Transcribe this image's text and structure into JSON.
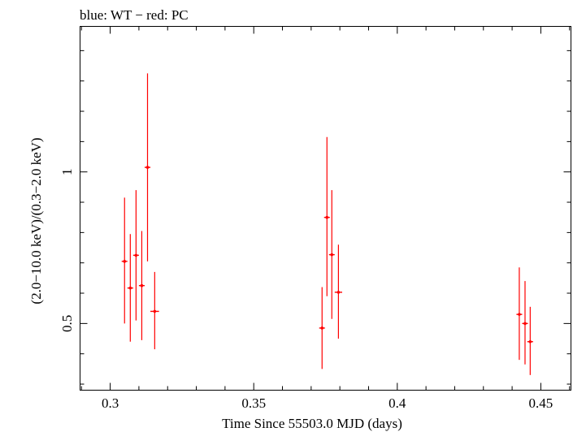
{
  "chart_data": {
    "type": "scatter",
    "title": "blue: WT − red: PC",
    "xlabel": "Time Since 55503.0 MJD (days)",
    "ylabel": "(2.0−10.0 keV)/(0.3−2.0 keV)",
    "xlim": [
      0.2895,
      0.4605
    ],
    "ylim": [
      0.28,
      1.48
    ],
    "xticks": [
      {
        "value": 0.3,
        "label": "0.3"
      },
      {
        "value": 0.35,
        "label": "0.35"
      },
      {
        "value": 0.4,
        "label": "0.4"
      },
      {
        "value": 0.45,
        "label": "0.45"
      }
    ],
    "yticks": [
      {
        "value": 0.5,
        "label": "0.5"
      },
      {
        "value": 1.0,
        "label": "1"
      }
    ],
    "series": [
      {
        "name": "PC",
        "color": "#ff0000",
        "points": [
          {
            "x": 0.305,
            "xerr": 0.001,
            "y": 0.705,
            "ylo": 0.5,
            "yhi": 0.915
          },
          {
            "x": 0.307,
            "xerr": 0.001,
            "y": 0.617,
            "ylo": 0.44,
            "yhi": 0.795
          },
          {
            "x": 0.309,
            "xerr": 0.001,
            "y": 0.725,
            "ylo": 0.51,
            "yhi": 0.94
          },
          {
            "x": 0.311,
            "xerr": 0.001,
            "y": 0.625,
            "ylo": 0.445,
            "yhi": 0.805
          },
          {
            "x": 0.313,
            "xerr": 0.001,
            "y": 1.015,
            "ylo": 0.705,
            "yhi": 1.325
          },
          {
            "x": 0.3155,
            "xerr": 0.0015,
            "y": 0.54,
            "ylo": 0.415,
            "yhi": 0.67
          },
          {
            "x": 0.3738,
            "xerr": 0.001,
            "y": 0.485,
            "ylo": 0.35,
            "yhi": 0.62
          },
          {
            "x": 0.3755,
            "xerr": 0.001,
            "y": 0.85,
            "ylo": 0.59,
            "yhi": 1.115
          },
          {
            "x": 0.3772,
            "xerr": 0.001,
            "y": 0.727,
            "ylo": 0.515,
            "yhi": 0.94
          },
          {
            "x": 0.3795,
            "xerr": 0.0013,
            "y": 0.603,
            "ylo": 0.45,
            "yhi": 0.76
          },
          {
            "x": 0.4425,
            "xerr": 0.001,
            "y": 0.53,
            "ylo": 0.38,
            "yhi": 0.685
          },
          {
            "x": 0.4445,
            "xerr": 0.001,
            "y": 0.5,
            "ylo": 0.365,
            "yhi": 0.64
          },
          {
            "x": 0.4463,
            "xerr": 0.001,
            "y": 0.44,
            "ylo": 0.33,
            "yhi": 0.555
          }
        ]
      }
    ]
  }
}
